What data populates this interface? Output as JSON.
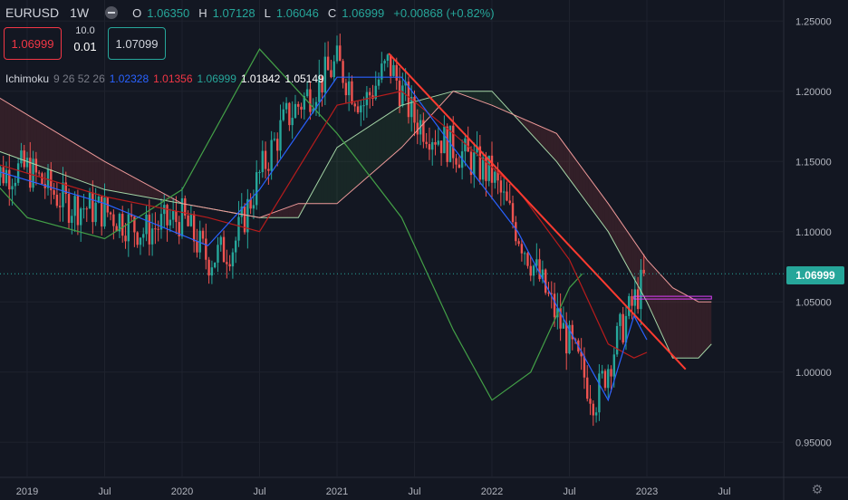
{
  "header": {
    "symbol": "EURUSD",
    "timeframe": "1W",
    "open_label": "O",
    "open": "1.06350",
    "high_label": "H",
    "high": "1.07128",
    "low_label": "L",
    "low": "1.06046",
    "close_label": "C",
    "close": "1.06999",
    "change": "+0.00868 (+0.82%)"
  },
  "trade_panel": {
    "sell_price": "1.06999",
    "buy_price": "1.07099",
    "quantity_label": "10.0",
    "spread": "0.01"
  },
  "indicator": {
    "name": "Ichimoku",
    "params": "9 26 52 26",
    "values": [
      "1.02328",
      "1.01356",
      "1.06999",
      "1.01842",
      "1.05149"
    ],
    "value_colors": [
      "#2962ff",
      "#f23645",
      "#26a69a",
      "#ffffff",
      "#ffffff"
    ]
  },
  "price_tag": "1.06999",
  "colors": {
    "background": "#131722",
    "up": "#26a69a",
    "down": "#ef5350",
    "conversion": "#2962ff",
    "base": "#b71c1c",
    "lagging": "#43a047",
    "span_a": "#a5d6a7",
    "span_b": "#ef9a9a",
    "trendline": "#ff3b30",
    "level": "#e040fb"
  },
  "chart_data": {
    "type": "line",
    "title": "EURUSD 1W",
    "y_axis": {
      "ticks": [
        "1.25000",
        "1.20000",
        "1.15000",
        "1.10000",
        "1.05000",
        "1.00000",
        "0.95000"
      ],
      "ylim": [
        0.925,
        1.265
      ]
    },
    "x_axis": {
      "ticks": [
        "2019",
        "Jul",
        "2020",
        "Jul",
        "2021",
        "Jul",
        "2022",
        "Jul",
        "2023",
        "Jul"
      ]
    },
    "grid": true,
    "series": [
      {
        "role": "price_close",
        "x": [
          "2018-10",
          "2019-01",
          "2019-04",
          "2019-07",
          "2019-10",
          "2020-01",
          "2020-03",
          "2020-05",
          "2020-07",
          "2020-09",
          "2021-01",
          "2021-03",
          "2021-05",
          "2021-07",
          "2021-10",
          "2022-01",
          "2022-03",
          "2022-05",
          "2022-07",
          "2022-09",
          "2022-11",
          "2023-01"
        ],
        "values": [
          1.14,
          1.145,
          1.12,
          1.115,
          1.1,
          1.11,
          1.08,
          1.09,
          1.14,
          1.18,
          1.22,
          1.19,
          1.22,
          1.18,
          1.16,
          1.14,
          1.1,
          1.06,
          1.02,
          0.98,
          1.03,
          1.07
        ]
      },
      {
        "role": "tenkan",
        "x": [
          "2018-10",
          "2019-07",
          "2020-03",
          "2020-07",
          "2021-01",
          "2021-06",
          "2021-10",
          "2022-03",
          "2022-07",
          "2022-10",
          "2022-12",
          "2023-01"
        ],
        "values": [
          1.145,
          1.12,
          1.09,
          1.13,
          1.21,
          1.21,
          1.16,
          1.1,
          1.03,
          0.98,
          1.04,
          1.023
        ]
      },
      {
        "role": "kijun",
        "x": [
          "2018-10",
          "2019-07",
          "2020-03",
          "2020-07",
          "2021-01",
          "2021-06",
          "2021-10",
          "2022-03",
          "2022-07",
          "2022-10",
          "2022-12",
          "2023-01"
        ],
        "values": [
          1.15,
          1.125,
          1.11,
          1.1,
          1.19,
          1.2,
          1.17,
          1.13,
          1.08,
          1.02,
          1.01,
          1.014
        ]
      },
      {
        "role": "chikou",
        "x": [
          "2018-04",
          "2018-07",
          "2019-01",
          "2019-07",
          "2020-01",
          "2020-07",
          "2020-10",
          "2021-01",
          "2021-06",
          "2021-10",
          "2022-01",
          "2022-04",
          "2022-07",
          "2022-08"
        ],
        "values": [
          1.2,
          1.17,
          1.11,
          1.095,
          1.13,
          1.23,
          1.2,
          1.17,
          1.11,
          1.03,
          0.98,
          1.0,
          1.06,
          1.07
        ]
      },
      {
        "role": "senkou_a",
        "x": [
          "2018-04",
          "2018-10",
          "2019-07",
          "2020-01",
          "2020-07",
          "2020-10",
          "2021-01",
          "2021-06",
          "2021-10",
          "2022-01",
          "2022-06",
          "2022-10",
          "2023-01",
          "2023-03",
          "2023-05",
          "2023-06"
        ],
        "values": [
          1.2,
          1.16,
          1.13,
          1.12,
          1.11,
          1.11,
          1.16,
          1.19,
          1.2,
          1.2,
          1.15,
          1.1,
          1.05,
          1.01,
          1.01,
          1.02
        ]
      },
      {
        "role": "senkou_b",
        "x": [
          "2018-04",
          "2018-10",
          "2019-07",
          "2020-01",
          "2020-07",
          "2020-10",
          "2021-01",
          "2021-06",
          "2021-10",
          "2022-01",
          "2022-06",
          "2022-10",
          "2023-01",
          "2023-03",
          "2023-05",
          "2023-06"
        ],
        "values": [
          1.2,
          1.2,
          1.15,
          1.12,
          1.11,
          1.12,
          1.12,
          1.16,
          1.2,
          1.19,
          1.17,
          1.12,
          1.08,
          1.06,
          1.05,
          1.05
        ]
      }
    ],
    "annotations": [
      {
        "type": "trendline",
        "x1": "2021-05",
        "y1": 1.227,
        "x2": "2023-04",
        "y2": 1.002
      },
      {
        "type": "horizontal_segment",
        "x1": "2022-12",
        "x2": "2023-06",
        "y": 1.053
      }
    ]
  }
}
